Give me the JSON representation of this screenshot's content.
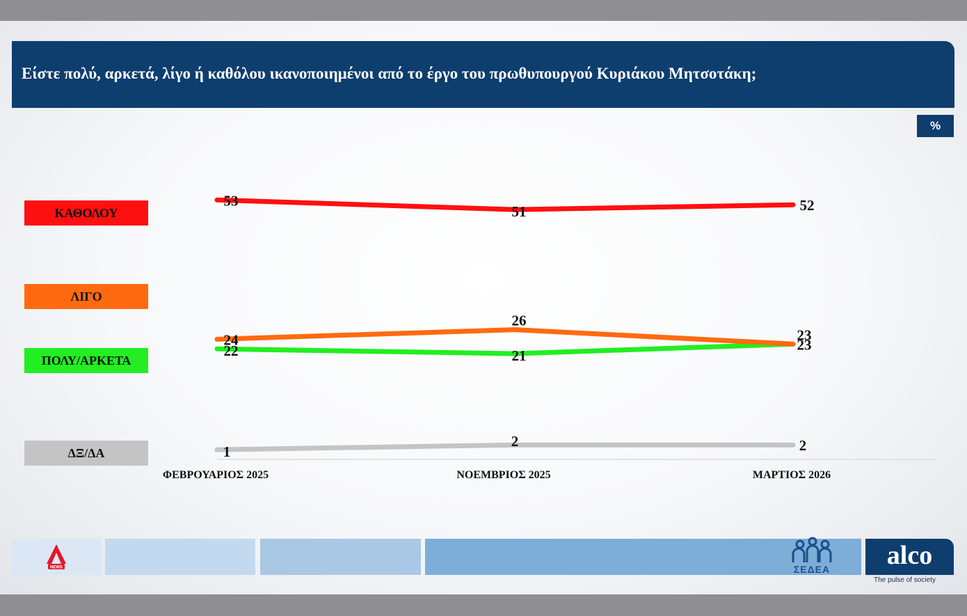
{
  "header": {
    "title": "Είστε πολύ, αρκετά, λίγο ή καθόλου ικανοποιημένοι από το έργο του πρωθυπουργού Κυριάκου Μητσοτάκη;"
  },
  "unit_badge": "%",
  "legend": {
    "katholou": "ΚΑΘΟΛΟΥ",
    "ligo": "ΛΙΓΟ",
    "poly": "ΠΟΛΥ/ΑΡΚΕΤΑ",
    "dxda": "ΔΞ/ΔΑ"
  },
  "chart_data": {
    "type": "line",
    "title": "Είστε πολύ, αρκετά, λίγο ή καθόλου ικανοποιημένοι από το έργο του πρωθυπουργού Κυριάκου Μητσοτάκη;",
    "unit": "%",
    "categories": [
      "ΦΕΒΡΟΥΑΡΙΟΣ 2025",
      "ΝΟΕΜΒΡΙΟΣ 2025",
      "ΜΑΡΤΙΟΣ 2026"
    ],
    "series": [
      {
        "name": "ΚΑΘΟΛΟΥ",
        "values": [
          53,
          51,
          52
        ],
        "color": "#ff1010"
      },
      {
        "name": "ΛΙΓΟ",
        "values": [
          24,
          26,
          23
        ],
        "color": "#ff6a10"
      },
      {
        "name": "ΠΟΛΥ/ΑΡΚΕΤΑ",
        "values": [
          22,
          21,
          23
        ],
        "color": "#22ee22"
      },
      {
        "name": "ΔΞ/ΔΑ",
        "values": [
          1,
          2,
          2
        ],
        "color": "#c4c4c4"
      }
    ],
    "legend_placement": "left",
    "grid": false
  },
  "footer": {
    "sedea_label": "ΣΕΔΕΑ",
    "alco_word": "alco",
    "alco_tagline": "The pulse of society",
    "alpha_news_label": "NEWS"
  }
}
